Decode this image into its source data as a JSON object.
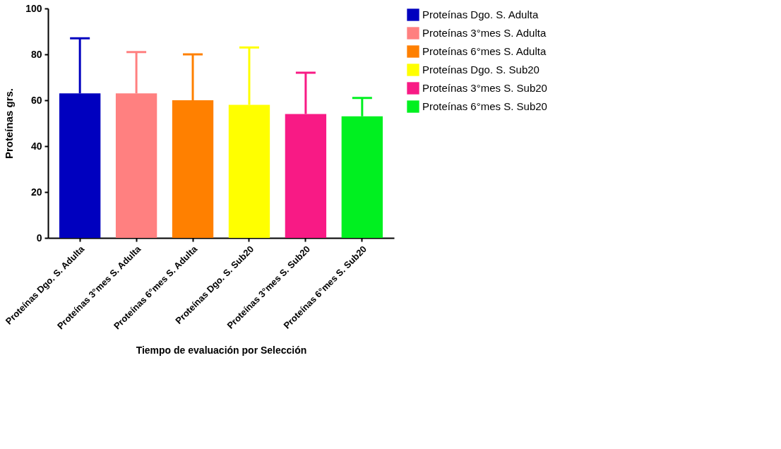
{
  "chart_data": {
    "type": "bar",
    "xlabel": "Tiempo de evaluación por Selección",
    "ylabel": "Proteínas grs.",
    "categories": [
      "Proteínas Dgo. S. Adulta",
      "Proteínas 3°mes S. Adulta",
      "Proteínas 6°mes S. Adulta",
      "Proteínas Dgo. S. Sub20",
      "Proteínas 3°mes S. Sub20",
      "Proteínas 6°mes S. Sub20"
    ],
    "series": [
      {
        "name": "Proteínas Dgo. S. Adulta",
        "color": "#0000bf",
        "values": [
          63,
          null,
          null,
          null,
          null,
          null
        ],
        "errors": [
          [
            63,
            87
          ],
          null,
          null,
          null,
          null,
          null
        ]
      },
      {
        "name": "Proteínas 3°mes S. Adulta",
        "color": "#ff8080",
        "values": [
          null,
          63,
          null,
          null,
          null,
          null
        ],
        "errors": [
          null,
          [
            63,
            81
          ],
          null,
          null,
          null,
          null
        ]
      },
      {
        "name": "Proteínas 6°mes S. Adulta",
        "color": "#ff8000",
        "values": [
          null,
          null,
          60,
          null,
          null,
          null
        ],
        "errors": [
          null,
          null,
          [
            60,
            80
          ],
          null,
          null,
          null
        ]
      },
      {
        "name": "Proteínas Dgo. S. Sub20",
        "color": "#ffff00",
        "values": [
          null,
          null,
          null,
          58,
          null,
          null
        ],
        "errors": [
          null,
          null,
          null,
          [
            58,
            83
          ],
          null,
          null
        ]
      },
      {
        "name": "Proteínas 3°mes S. Sub20",
        "color": "#f81a85",
        "values": [
          null,
          null,
          null,
          null,
          54,
          null
        ],
        "errors": [
          null,
          null,
          null,
          null,
          [
            54,
            72
          ],
          null
        ]
      },
      {
        "name": "Proteínas 6°mes S. Sub20",
        "color": "#00f020",
        "values": [
          null,
          null,
          null,
          null,
          null,
          53
        ],
        "errors": [
          null,
          null,
          null,
          null,
          null,
          [
            53,
            61
          ]
        ]
      }
    ],
    "ylim": [
      0,
      100
    ],
    "yticks": [
      0,
      20,
      40,
      60,
      80,
      100
    ],
    "grid": false,
    "legend": "top right"
  }
}
